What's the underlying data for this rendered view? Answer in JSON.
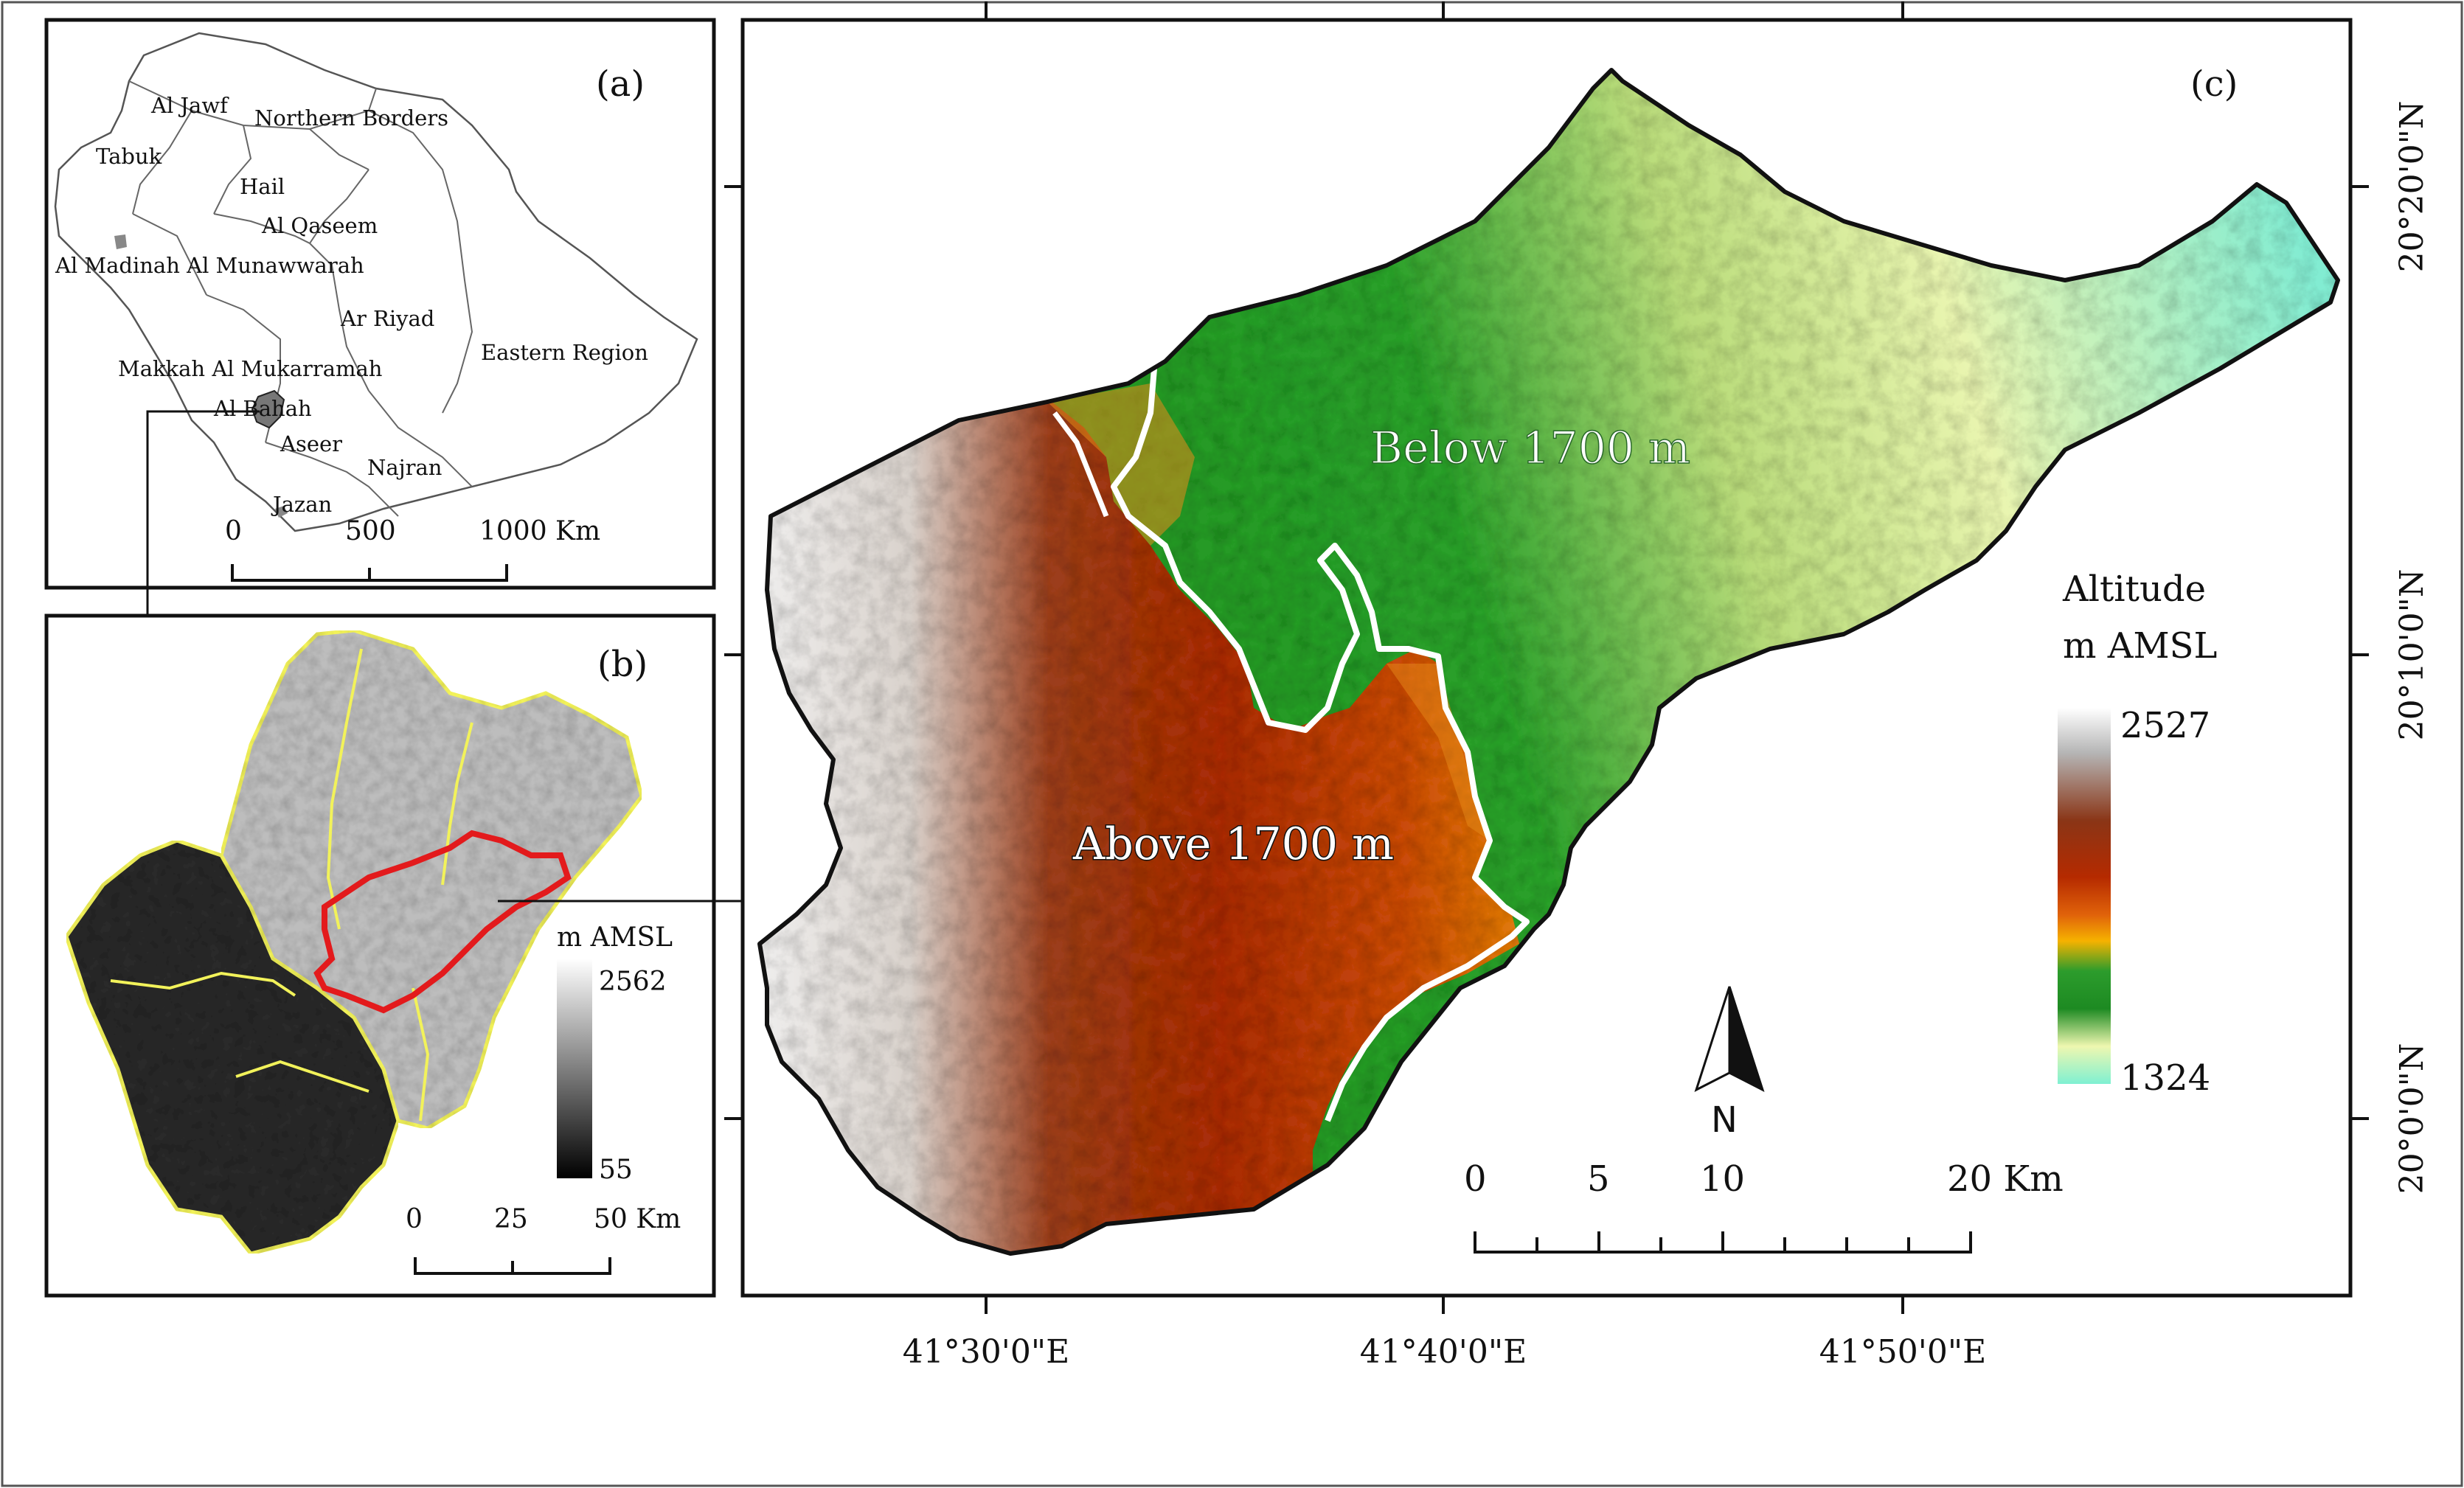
{
  "panels": {
    "a": {
      "label": "(a)",
      "regions": [
        "Al Jawf",
        "Northern Borders",
        "Tabuk",
        "Hail",
        "Al Qaseem",
        "Al Madinah Al Munawwarah",
        "Ar Riyad",
        "Eastern Region",
        "Makkah Al Mukarramah",
        "Al Bahah",
        "Aseer",
        "Najran",
        "Jazan"
      ],
      "scalebar": {
        "ticks": [
          "0",
          "500",
          "1000 Km"
        ]
      }
    },
    "b": {
      "label": "(b)",
      "legend": {
        "title": "m AMSL",
        "max": "2562",
        "min": "55"
      },
      "scalebar": {
        "ticks": [
          "0",
          "25",
          "50 Km"
        ]
      }
    },
    "c": {
      "label": "(c)",
      "zones": {
        "below": "Below 1700 m",
        "above": "Above 1700 m"
      },
      "legend": {
        "title_line1": "Altitude",
        "title_line2": "m AMSL",
        "max": "2527",
        "min": "1324"
      },
      "north": "N",
      "scalebar": {
        "ticks": [
          "0",
          "5",
          "10",
          "20 Km"
        ]
      },
      "lon_labels": [
        "41°30'0\"E",
        "41°40'0\"E",
        "41°50'0\"E"
      ],
      "lat_labels": [
        "20°20'0\"N",
        "20°10'0\"N",
        "20°0'0\"N"
      ]
    }
  },
  "colors": {
    "boundary": "#111111",
    "study_area": "#e31a1c",
    "subbasin": "#f3f36a",
    "contour_1700": "#ffffff",
    "altitude_ramp": [
      "#ffffff",
      "#bdbdbd",
      "#8b3a1a",
      "#b02a00",
      "#e36a00",
      "#f7b500",
      "#2f9e2f",
      "#1f8a1f",
      "#e8f4a8",
      "#7ff0d0"
    ]
  }
}
